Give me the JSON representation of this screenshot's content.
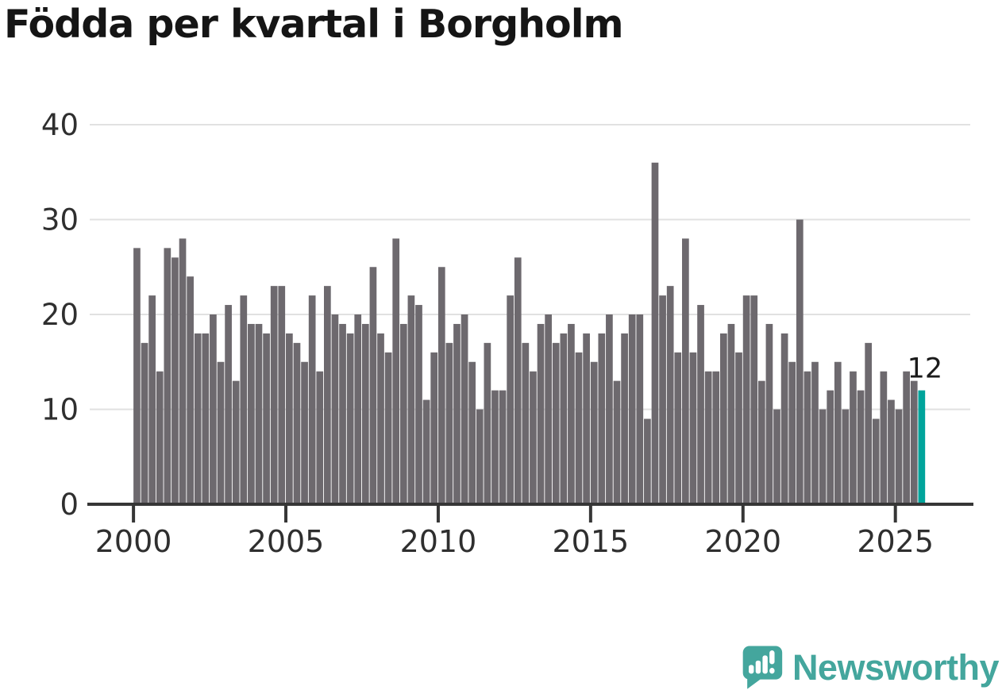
{
  "title": "Födda per kvartal i Borgholm",
  "chart_data": {
    "type": "bar",
    "title": "Födda per kvartal i Borgholm",
    "x_unit": "quarter",
    "start_period": "2000 Q1",
    "end_period": "2025 Q4",
    "values": [
      27,
      17,
      22,
      14,
      27,
      26,
      28,
      24,
      18,
      18,
      20,
      15,
      21,
      13,
      22,
      19,
      19,
      18,
      23,
      23,
      18,
      17,
      15,
      22,
      14,
      23,
      20,
      19,
      18,
      20,
      19,
      25,
      18,
      16,
      28,
      19,
      22,
      21,
      11,
      16,
      25,
      17,
      19,
      20,
      15,
      10,
      17,
      12,
      12,
      22,
      26,
      17,
      14,
      19,
      20,
      17,
      18,
      19,
      16,
      18,
      15,
      18,
      20,
      13,
      18,
      20,
      20,
      9,
      36,
      22,
      23,
      16,
      28,
      16,
      21,
      14,
      14,
      18,
      19,
      16,
      22,
      22,
      13,
      19,
      10,
      18,
      15,
      30,
      14,
      15,
      10,
      12,
      15,
      10,
      14,
      12,
      17,
      9,
      14,
      11,
      10,
      14,
      13,
      12
    ],
    "years": [
      2000,
      2001,
      2002,
      2003,
      2004,
      2005,
      2006,
      2007,
      2008,
      2009,
      2010,
      2011,
      2012,
      2013,
      2014,
      2015,
      2016,
      2017,
      2018,
      2019,
      2020,
      2021,
      2022,
      2023,
      2024,
      2025
    ],
    "quarters_per_year": 4,
    "highlight": {
      "index": 103,
      "period": "2025 Q4",
      "value": 12,
      "label": "12"
    },
    "x_tick_labels": [
      "2000",
      "2005",
      "2010",
      "2015",
      "2020",
      "2025"
    ],
    "y_ticks": [
      0,
      10,
      20,
      30,
      40
    ],
    "ylim": [
      0,
      40
    ],
    "grid": true,
    "legend": false,
    "colors": {
      "bar": "#6d696e",
      "highlight": "#00a49b",
      "axis": "#363636",
      "grid": "#e1e1e1",
      "tick_text": "#2f2f2f",
      "annotation_text": "#1b1b1b",
      "title": "#151515"
    }
  },
  "branding": {
    "name": "Newsworthy",
    "color": "#44a69d"
  }
}
